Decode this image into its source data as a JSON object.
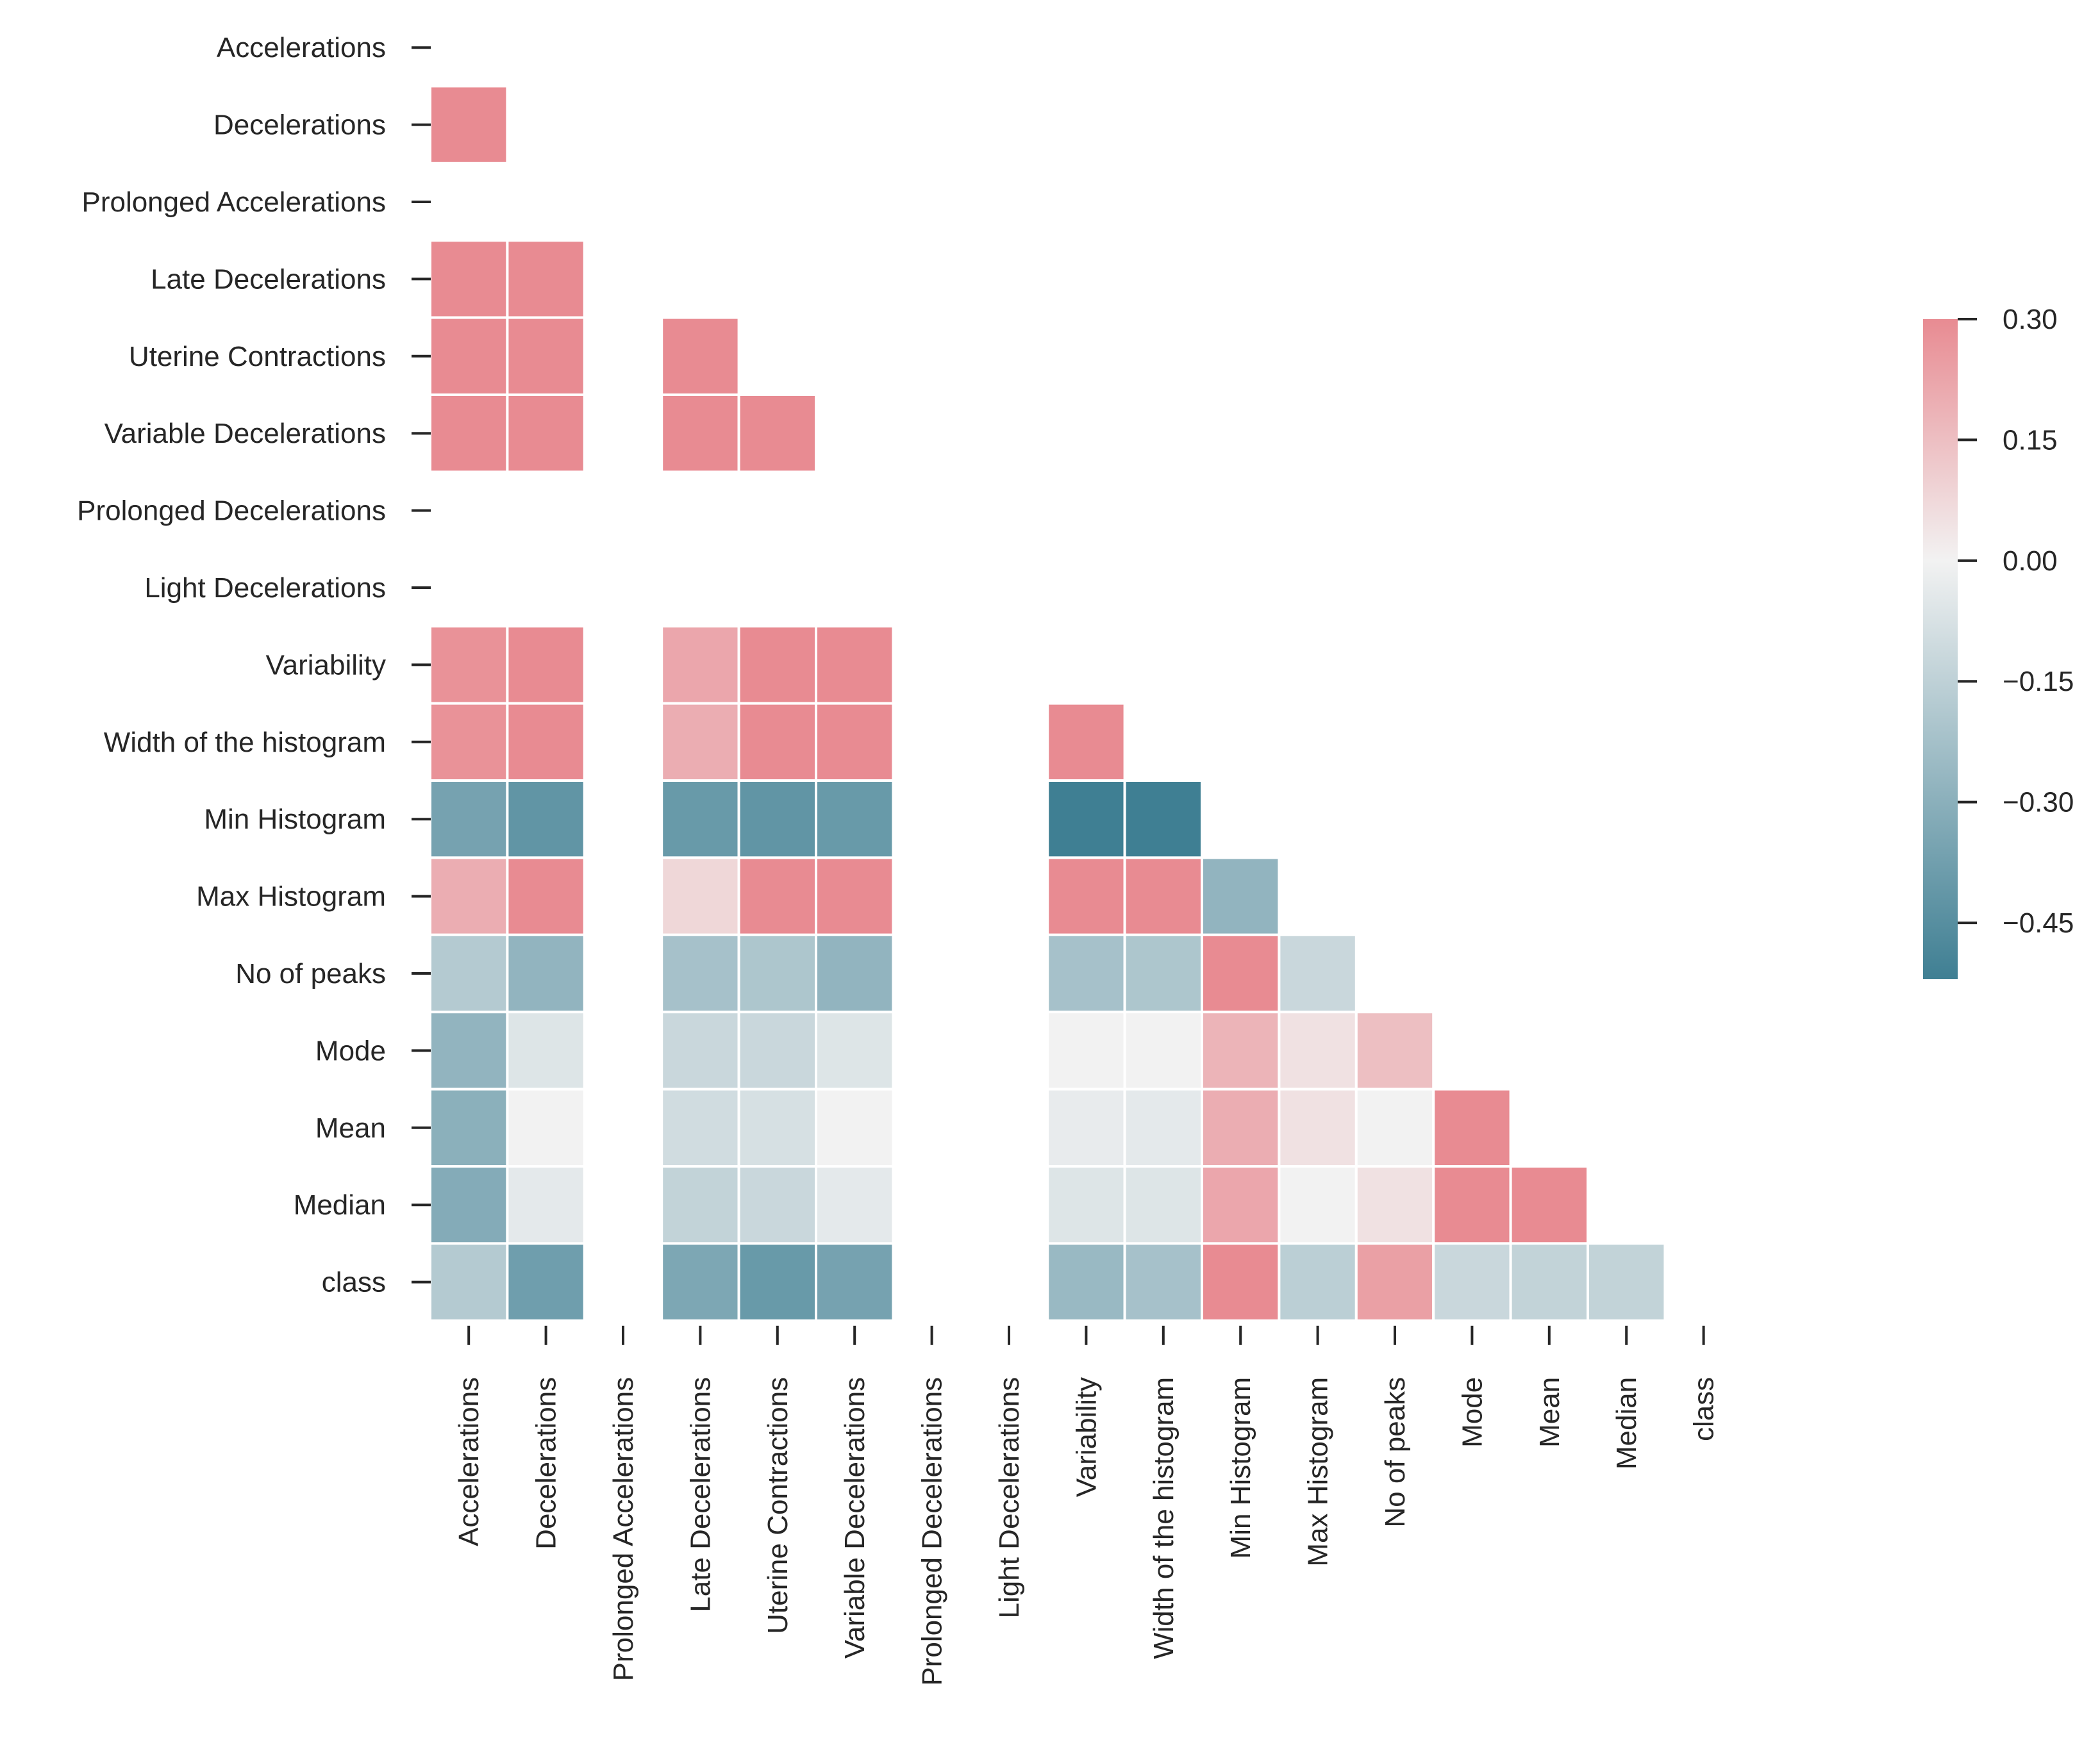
{
  "chart_data": {
    "type": "heatmap",
    "title": "",
    "variant": "lower-triangle correlation matrix (diagonal masked)",
    "row_labels": [
      "Accelerations",
      "Decelerations",
      "Prolonged Accelerations",
      "Late Decelerations",
      "Uterine Contractions",
      "Variable Decelerations",
      "Prolonged Decelerations",
      "Light Decelerations",
      "Variability",
      "Width of the histogram",
      "Min Histogram",
      "Max Histogram",
      "No of peaks",
      "Mode",
      "Mean",
      "Median",
      "class"
    ],
    "col_labels": [
      "Accelerations",
      "Decelerations",
      "Prolonged Accelerations",
      "Late Decelerations",
      "Uterine Contractions",
      "Variable Decelerations",
      "Prolonged Decelerations",
      "Light Decelerations",
      "Variability",
      "Width of the histogram",
      "Min Histogram",
      "Max Histogram",
      "No of peaks",
      "Mode",
      "Mean",
      "Median",
      "class"
    ],
    "values": [
      [
        null,
        null,
        null,
        null,
        null,
        null,
        null,
        null,
        null,
        null,
        null,
        null,
        null,
        null,
        null,
        null,
        null
      ],
      [
        0.3,
        null,
        null,
        null,
        null,
        null,
        null,
        null,
        null,
        null,
        null,
        null,
        null,
        null,
        null,
        null,
        null
      ],
      [
        null,
        null,
        null,
        null,
        null,
        null,
        null,
        null,
        null,
        null,
        null,
        null,
        null,
        null,
        null,
        null,
        null
      ],
      [
        0.3,
        0.3,
        null,
        null,
        null,
        null,
        null,
        null,
        null,
        null,
        null,
        null,
        null,
        null,
        null,
        null,
        null
      ],
      [
        0.3,
        0.3,
        null,
        0.3,
        null,
        null,
        null,
        null,
        null,
        null,
        null,
        null,
        null,
        null,
        null,
        null,
        null
      ],
      [
        0.3,
        0.3,
        null,
        0.3,
        0.3,
        null,
        null,
        null,
        null,
        null,
        null,
        null,
        null,
        null,
        null,
        null,
        null
      ],
      [
        null,
        null,
        null,
        null,
        null,
        null,
        null,
        null,
        null,
        null,
        null,
        null,
        null,
        null,
        null,
        null,
        null
      ],
      [
        null,
        null,
        null,
        null,
        null,
        null,
        null,
        null,
        null,
        null,
        null,
        null,
        null,
        null,
        null,
        null,
        null
      ],
      [
        0.28,
        0.3,
        null,
        0.22,
        0.3,
        0.3,
        null,
        null,
        null,
        null,
        null,
        null,
        null,
        null,
        null,
        null,
        null
      ],
      [
        0.28,
        0.3,
        null,
        0.2,
        0.3,
        0.3,
        null,
        null,
        0.3,
        null,
        null,
        null,
        null,
        null,
        null,
        null,
        null
      ],
      [
        -0.36,
        -0.42,
        null,
        -0.4,
        -0.42,
        -0.4,
        null,
        null,
        -0.52,
        -0.52,
        null,
        null,
        null,
        null,
        null,
        null,
        null
      ],
      [
        0.2,
        0.3,
        null,
        0.08,
        0.3,
        0.3,
        null,
        null,
        0.3,
        0.3,
        -0.28,
        null,
        null,
        null,
        null,
        null,
        null
      ],
      [
        -0.18,
        -0.28,
        null,
        -0.22,
        -0.2,
        -0.28,
        null,
        null,
        -0.22,
        -0.2,
        0.3,
        -0.12,
        null,
        null,
        null,
        null,
        null
      ],
      [
        -0.28,
        -0.06,
        null,
        -0.12,
        -0.12,
        -0.06,
        null,
        null,
        0.0,
        0.0,
        0.18,
        0.05,
        0.15,
        null,
        null,
        null,
        null
      ],
      [
        -0.3,
        0.0,
        null,
        -0.1,
        -0.08,
        0.0,
        null,
        null,
        -0.03,
        -0.04,
        0.2,
        0.05,
        0.0,
        0.3,
        null,
        null,
        null
      ],
      [
        -0.32,
        -0.04,
        null,
        -0.14,
        -0.12,
        -0.04,
        null,
        null,
        -0.06,
        -0.06,
        0.22,
        0.0,
        0.05,
        0.3,
        0.3,
        null,
        null
      ],
      [
        -0.18,
        -0.38,
        null,
        -0.34,
        -0.4,
        -0.36,
        null,
        null,
        -0.26,
        -0.22,
        0.3,
        -0.16,
        0.24,
        -0.12,
        -0.14,
        -0.14,
        null
      ]
    ],
    "vmin": -0.52,
    "vmax": 0.3,
    "colorbar": {
      "ticks": [
        0.3,
        0.15,
        0.0,
        -0.15,
        -0.3,
        -0.45
      ],
      "tick_labels": [
        "0.30",
        "0.15",
        "0.00",
        "−0.15",
        "−0.30",
        "−0.45"
      ],
      "colors": {
        "low": "#3f7f93",
        "mid": "#f2f2f2",
        "high": "#e88b92"
      }
    },
    "grid": false,
    "legend": "colorbar right"
  }
}
